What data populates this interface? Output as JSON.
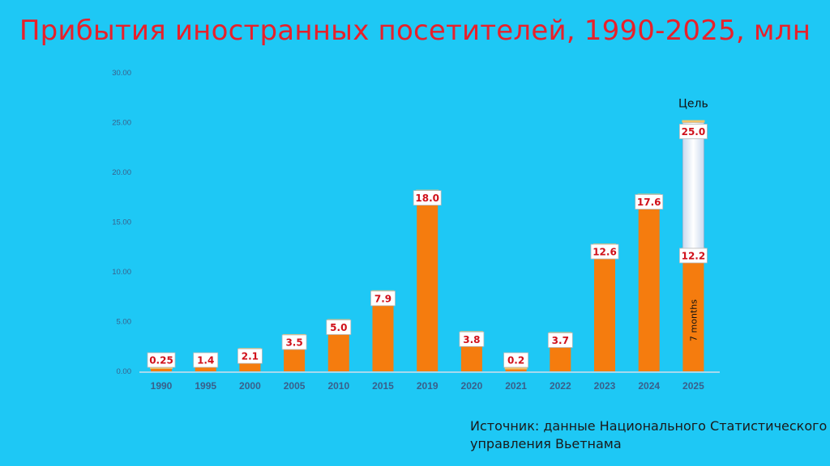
{
  "title": "Прибытия иностранных посетителей, 1990-2025, млн",
  "source": [
    "Источник: данные Национального Статистического",
    "управления Вьетнама"
  ],
  "colors": {
    "background": "#1ec8f5",
    "bar": "#f57c0e",
    "target": "#dde8f6",
    "title": "#e8202a",
    "label_text": "#d0101a"
  },
  "chart_data": {
    "type": "bar",
    "categories": [
      "1990",
      "1995",
      "2000",
      "2005",
      "2010",
      "2015",
      "2019",
      "2020",
      "2021",
      "2022",
      "2023",
      "2024",
      "2025"
    ],
    "values": [
      0.25,
      1.4,
      2.1,
      3.5,
      5.0,
      7.9,
      18.0,
      3.8,
      0.2,
      3.7,
      12.6,
      17.6,
      12.2
    ],
    "data_labels": [
      "0.25",
      "1.4",
      "2.1",
      "3.5",
      "5.0",
      "7.9",
      "18.0",
      "3.8",
      "0.2",
      "3.7",
      "12.6",
      "17.6",
      "12.2"
    ],
    "target": {
      "category": "2025",
      "value": 25.0,
      "label": "25.0",
      "caption": "Цель"
    },
    "bar_note": {
      "category": "2025",
      "text": "7 months"
    },
    "ylim": [
      0,
      30
    ],
    "yticks": [
      "0.00",
      "5.00",
      "10.00",
      "15.00",
      "20.00",
      "25.00",
      "30.00"
    ],
    "xlabel": "",
    "ylabel": "",
    "grid": false
  }
}
